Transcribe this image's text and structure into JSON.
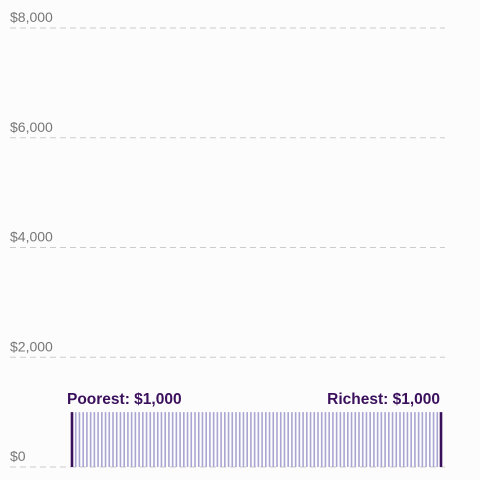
{
  "chart_data": {
    "type": "bar",
    "yticks": [
      {
        "value": 8000,
        "label": "$8,000"
      },
      {
        "value": 6000,
        "label": "$6,000"
      },
      {
        "value": 4000,
        "label": "$4,000"
      },
      {
        "value": 2000,
        "label": "$2,000"
      },
      {
        "value": 0,
        "label": "$0"
      }
    ],
    "ylim": [
      0,
      8000
    ],
    "grid": true,
    "bar_count": 100,
    "bar_value": 1000,
    "bar_color": "#a9a5d1",
    "edge_bar_color": "#3a0f5c",
    "annotations": {
      "poorest": "Poorest: $1,000",
      "richest": "Richest: $1,000"
    },
    "annotation_color": "#3a0f5c",
    "grid_color": "#cccccc",
    "tick_color": "#777777"
  }
}
